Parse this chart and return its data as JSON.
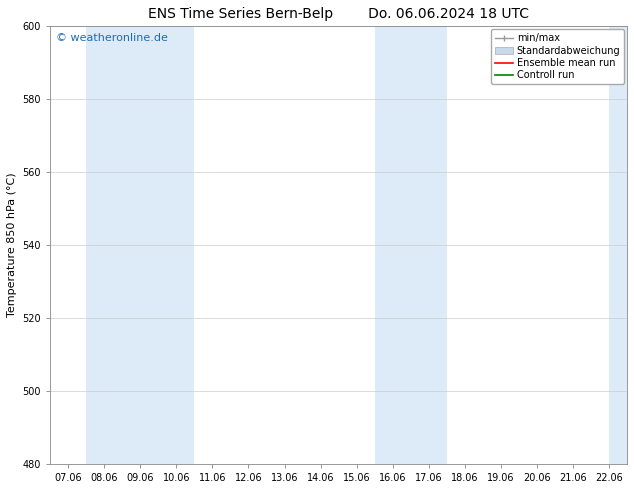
{
  "title_left": "ENS Time Series Bern-Belp",
  "title_right": "Do. 06.06.2024 18 UTC",
  "ylabel": "Temperature 850 hPa (°C)",
  "yticks": [
    480,
    500,
    520,
    540,
    560,
    580,
    600
  ],
  "ylim": [
    480,
    600
  ],
  "x_tick_labels": [
    "07.06",
    "08.06",
    "09.06",
    "10.06",
    "11.06",
    "12.06",
    "13.06",
    "14.06",
    "15.06",
    "16.06",
    "17.06",
    "18.06",
    "19.06",
    "20.06",
    "21.06",
    "22.06"
  ],
  "x_tick_positions": [
    0,
    1,
    2,
    3,
    4,
    5,
    6,
    7,
    8,
    9,
    10,
    11,
    12,
    13,
    14,
    15
  ],
  "xlim": [
    -0.5,
    15.5
  ],
  "shaded_bands": [
    {
      "x_start": 0.5,
      "x_end": 3.5
    },
    {
      "x_start": 8.5,
      "x_end": 10.5
    },
    {
      "x_start": 15.0,
      "x_end": 15.5
    }
  ],
  "shade_color": "#ddeaf8",
  "background_color": "#ffffff",
  "watermark_text": "© weatheronline.de",
  "watermark_color": "#1a6eb5",
  "legend_items": [
    {
      "label": "min/max",
      "color": "#aaaaaa",
      "style": "minmax"
    },
    {
      "label": "Standardabweichung",
      "color": "#c8d8e8",
      "style": "std"
    },
    {
      "label": "Ensemble mean run",
      "color": "red",
      "style": "line"
    },
    {
      "label": "Controll run",
      "color": "green",
      "style": "line"
    }
  ],
  "title_fontsize": 10,
  "axis_label_fontsize": 8,
  "tick_fontsize": 7,
  "legend_fontsize": 7,
  "watermark_fontsize": 8,
  "figsize": [
    6.34,
    4.9
  ],
  "dpi": 100
}
